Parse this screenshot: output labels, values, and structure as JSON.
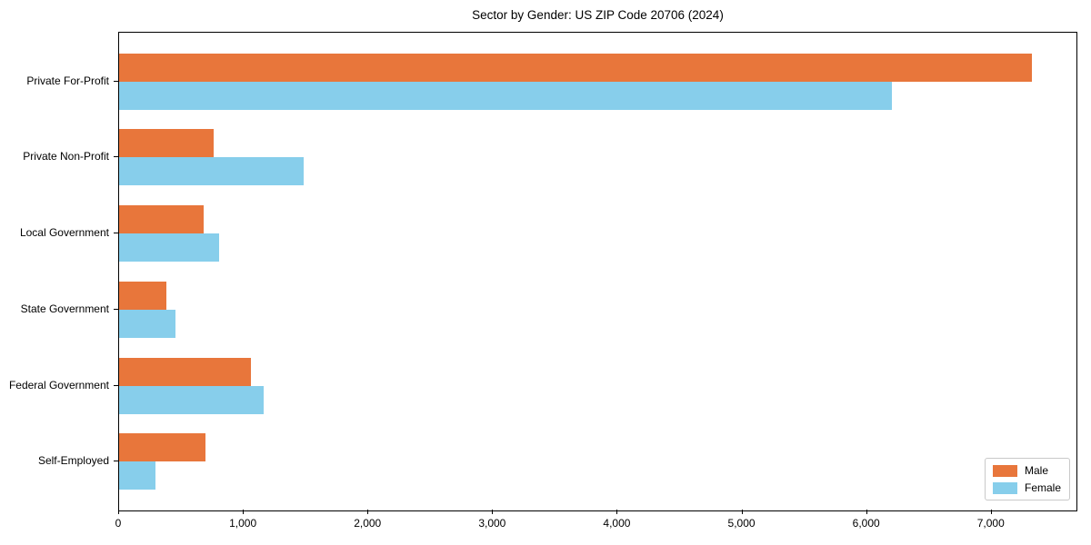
{
  "chart_data": {
    "type": "bar",
    "orientation": "horizontal",
    "title": "Sector by Gender: US ZIP Code 20706 (2024)",
    "categories": [
      "Private For-Profit",
      "Private Non-Profit",
      "Local Government",
      "State Government",
      "Federal Government",
      "Self-Employed"
    ],
    "series": [
      {
        "name": "Male",
        "color": "#E8763B",
        "values": [
          7320,
          760,
          680,
          380,
          1060,
          690
        ]
      },
      {
        "name": "Female",
        "color": "#87CEEB",
        "values": [
          6200,
          1480,
          800,
          450,
          1160,
          290
        ]
      }
    ],
    "xlabel": "",
    "ylabel": "",
    "xlim": [
      0,
      7680
    ],
    "xticks": [
      0,
      1000,
      2000,
      3000,
      4000,
      5000,
      6000,
      7000
    ],
    "xtick_labels": [
      "0",
      "1,000",
      "2,000",
      "3,000",
      "4,000",
      "5,000",
      "6,000",
      "7,000"
    ],
    "legend": {
      "position": "lower right",
      "entries": [
        "Male",
        "Female"
      ]
    },
    "grid": false,
    "frame_color": "#000000",
    "background": "#FFFFFF"
  }
}
